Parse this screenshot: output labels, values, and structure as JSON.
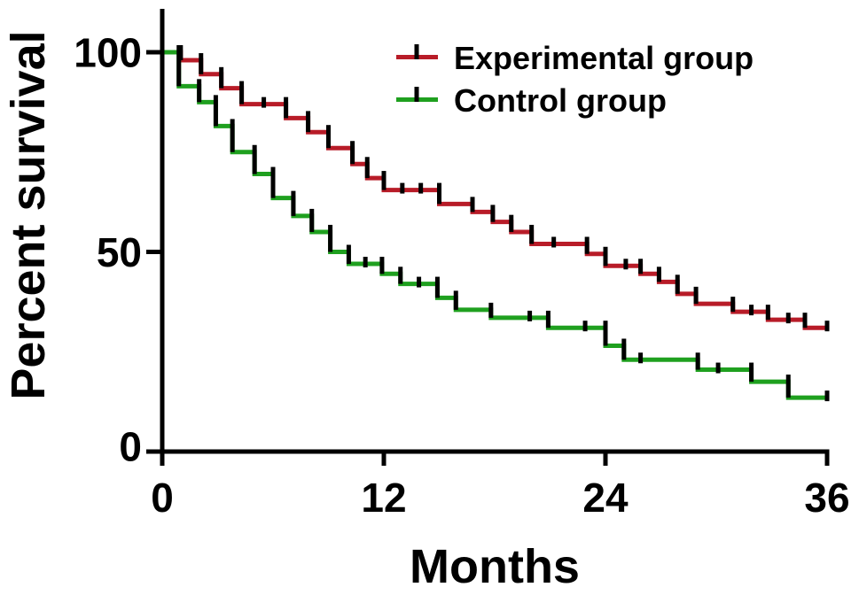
{
  "chart_data": {
    "type": "line",
    "subtype": "kaplan-meier-step",
    "title": "",
    "xlabel": "Months",
    "ylabel": "Percent survival",
    "xlim": [
      0,
      36
    ],
    "ylim": [
      0,
      100
    ],
    "xticks": [
      0,
      12,
      24,
      36
    ],
    "yticks": [
      100,
      50,
      0
    ],
    "grid": false,
    "legend_position": "top-right",
    "axis_color": "#000000",
    "censor_tick_color": "#000000",
    "series": [
      {
        "name": "Experimental group",
        "color": "#b81c28",
        "steps": [
          [
            0,
            100
          ],
          [
            1,
            98
          ],
          [
            2.1,
            94.5
          ],
          [
            3.2,
            91
          ],
          [
            4.3,
            87
          ],
          [
            6.7,
            83.5
          ],
          [
            7.9,
            80
          ],
          [
            9,
            76
          ],
          [
            10.3,
            72
          ],
          [
            11.1,
            68.5
          ],
          [
            12,
            65.5
          ],
          [
            15,
            62
          ],
          [
            16.8,
            60
          ],
          [
            17.9,
            57.5
          ],
          [
            18.9,
            55
          ],
          [
            20,
            52
          ],
          [
            23,
            49.5
          ],
          [
            24,
            46.5
          ],
          [
            25.9,
            44.5
          ],
          [
            26.9,
            42.5
          ],
          [
            27.9,
            39.5
          ],
          [
            28.9,
            37
          ],
          [
            30.9,
            35
          ],
          [
            32.8,
            33
          ],
          [
            34.8,
            31
          ]
        ],
        "censor_months": [
          5.5,
          13,
          14,
          21.2,
          25.1,
          31.9,
          33.9,
          36
        ]
      },
      {
        "name": "Control group",
        "color": "#1fa01f",
        "steps": [
          [
            0,
            100
          ],
          [
            0.9,
            91.5
          ],
          [
            2,
            87.5
          ],
          [
            2.9,
            81.5
          ],
          [
            3.8,
            75
          ],
          [
            5,
            69.5
          ],
          [
            6,
            63.5
          ],
          [
            7.1,
            59
          ],
          [
            8.1,
            55
          ],
          [
            9.1,
            50
          ],
          [
            10.1,
            47
          ],
          [
            11.9,
            44.5
          ],
          [
            12.9,
            42
          ],
          [
            14.9,
            38.5
          ],
          [
            15.9,
            35.5
          ],
          [
            17.8,
            33.5
          ],
          [
            20.9,
            31
          ],
          [
            24,
            26.5
          ],
          [
            25,
            23
          ],
          [
            29,
            20.5
          ],
          [
            31.9,
            17.5
          ],
          [
            33.9,
            13.5
          ]
        ],
        "censor_months": [
          11,
          13.9,
          19.9,
          22.9,
          25.9,
          30.1,
          36
        ]
      }
    ]
  }
}
